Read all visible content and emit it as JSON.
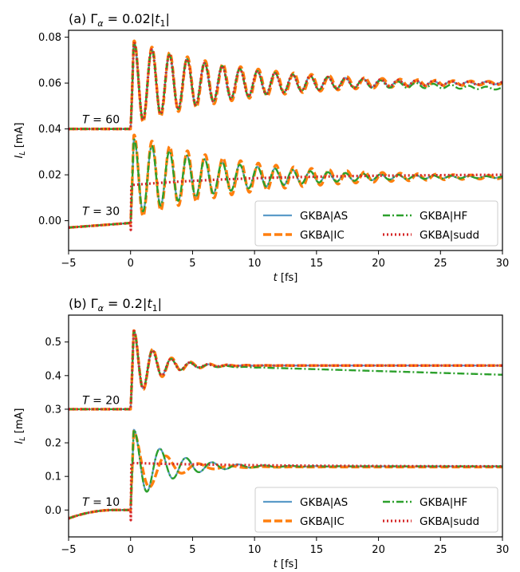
{
  "chart_data": [
    {
      "type": "line",
      "title": "(a) Γα = 0.02|t1|",
      "title_parts": {
        "prefix": "(a) ",
        "symbol": "Γ",
        "sub": "α",
        "mid": " = 0.02|",
        "t": "t",
        "tsub": "1",
        "suffix": "|"
      },
      "xlabel": "t [fs]",
      "ylabel": "IL [mA]",
      "xlim": [
        -5,
        30
      ],
      "ylim": [
        -0.013,
        0.083
      ],
      "xticks": [
        -5,
        0,
        5,
        10,
        15,
        20,
        25,
        30
      ],
      "xtick_labels": [
        "−5",
        "0",
        "5",
        "10",
        "15",
        "20",
        "25",
        "30"
      ],
      "yticks": [
        0.0,
        0.02,
        0.04,
        0.06,
        0.08
      ],
      "ytick_labels": [
        "0.00",
        "0.02",
        "0.04",
        "0.06",
        "0.08"
      ],
      "legend": "lower-right",
      "annotations": [
        {
          "text": "T = 60",
          "x": -4.8,
          "y": 0.0425
        },
        {
          "text": "T = 30",
          "x": -4.8,
          "y": 0.0025
        }
      ],
      "groups": [
        {
          "pre": {
            "kind": "flat",
            "value": 0.04
          },
          "as": {
            "base": 0.06,
            "amp": 0.018,
            "decay": 0.12,
            "period": 1.42,
            "drift": 0.0
          },
          "ic": {
            "base": 0.06,
            "amp": 0.019,
            "decay": 0.11,
            "period": 1.43,
            "drift": 0.0
          },
          "hf": {
            "base": 0.06,
            "amp": 0.018,
            "decay": 0.12,
            "period": 1.42,
            "drift": -0.0002,
            "drift_start": 18
          },
          "sudd": {
            "base": 0.06,
            "amp": 0.018,
            "decay": 0.12,
            "period": 1.42,
            "drift": 0.0
          }
        },
        {
          "pre": {
            "kind": "ramp",
            "start": -0.003,
            "end": -0.001
          },
          "as": {
            "base": 0.019,
            "amp": 0.017,
            "decay": 0.13,
            "period": 1.42,
            "drift": 0.0
          },
          "ic": {
            "base": 0.019,
            "amp": 0.019,
            "decay": 0.11,
            "period": 1.43,
            "drift": 0.0
          },
          "hf": {
            "base": 0.019,
            "amp": 0.017,
            "decay": 0.13,
            "period": 1.42,
            "drift": 0.0
          },
          "sudd": {
            "start": 0.0155,
            "end": 0.02,
            "dip": -0.004
          }
        }
      ],
      "series": [
        {
          "name": "GKBA|AS",
          "color": "#5b9bc8",
          "dash": "",
          "width": 2.2
        },
        {
          "name": "GKBA|IC",
          "color": "#ff7f0e",
          "dash": "10 4",
          "width": 3.4
        },
        {
          "name": "GKBA|HF",
          "color": "#2ca02c",
          "dash": "9 3 2 3",
          "width": 2.4
        },
        {
          "name": "GKBA|sudd",
          "color": "#d62728",
          "dash": "2 3",
          "width": 3.2
        }
      ]
    },
    {
      "type": "line",
      "title": "(b) Γα = 0.2|t1|",
      "title_parts": {
        "prefix": "(b) ",
        "symbol": "Γ",
        "sub": "α",
        "mid": " = 0.2|",
        "t": "t",
        "tsub": "1",
        "suffix": "|"
      },
      "xlabel": "t [fs]",
      "ylabel": "IL [mA]",
      "xlim": [
        -5,
        30
      ],
      "ylim": [
        -0.08,
        0.58
      ],
      "xticks": [
        -5,
        0,
        5,
        10,
        15,
        20,
        25,
        30
      ],
      "xtick_labels": [
        "−5",
        "0",
        "5",
        "10",
        "15",
        "20",
        "25",
        "30"
      ],
      "yticks": [
        0.0,
        0.1,
        0.2,
        0.3,
        0.4,
        0.5
      ],
      "ytick_labels": [
        "0.0",
        "0.1",
        "0.2",
        "0.3",
        "0.4",
        "0.5"
      ],
      "legend": "lower-right",
      "annotations": [
        {
          "text": "T = 20",
          "x": -4.8,
          "y": 0.315
        },
        {
          "text": "T = 10",
          "x": -4.8,
          "y": 0.012
        }
      ],
      "groups": [
        {
          "pre": {
            "kind": "flat",
            "value": 0.3
          },
          "as": {
            "base": 0.43,
            "amp": 0.12,
            "decay": 0.55,
            "period": 1.5,
            "drift": 0.0
          },
          "ic": {
            "base": 0.43,
            "amp": 0.12,
            "decay": 0.5,
            "period": 1.52,
            "drift": 0.0
          },
          "hf": {
            "base": 0.43,
            "amp": 0.12,
            "decay": 0.55,
            "period": 1.5,
            "drift": -0.0011,
            "drift_start": 5
          },
          "sudd": {
            "base": 0.43,
            "amp": 0.12,
            "decay": 0.55,
            "period": 1.5,
            "drift": 0.0
          }
        },
        {
          "pre": {
            "kind": "saturate",
            "start": -0.025,
            "end": 0.0
          },
          "as": {
            "base": 0.13,
            "amp": 0.12,
            "decay": 0.35,
            "period": 2.1,
            "drift": 0.0
          },
          "ic": {
            "base": 0.128,
            "amp": 0.12,
            "decay": 0.45,
            "period": 2.6,
            "drift": 0.0
          },
          "hf": {
            "base": 0.13,
            "amp": 0.12,
            "decay": 0.35,
            "period": 2.1,
            "drift": 0.0
          },
          "sudd": {
            "start": 0.14,
            "end": 0.13,
            "dip": -0.03
          }
        }
      ],
      "series": [
        {
          "name": "GKBA|AS",
          "color": "#5b9bc8",
          "dash": "",
          "width": 2.2
        },
        {
          "name": "GKBA|IC",
          "color": "#ff7f0e",
          "dash": "10 4",
          "width": 3.4
        },
        {
          "name": "GKBA|HF",
          "color": "#2ca02c",
          "dash": "9 3 2 3",
          "width": 2.4
        },
        {
          "name": "GKBA|sudd",
          "color": "#d62728",
          "dash": "2 3",
          "width": 3.2
        }
      ]
    }
  ]
}
